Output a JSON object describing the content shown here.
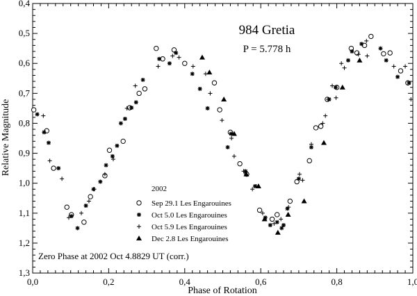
{
  "chart_data": {
    "type": "scatter",
    "title": "984 Gretia",
    "subtitle": "P = 5.778 h",
    "xlabel": "Phase of Rotation",
    "ylabel": "Relative Magnitude",
    "xlim": [
      0.0,
      1.0
    ],
    "ylim": [
      1.3,
      0.4
    ],
    "y_inverted": true,
    "x_ticks": [
      "0,0",
      "0,2",
      "0,4",
      "0,6",
      "0,8",
      "1,0"
    ],
    "y_ticks": [
      "0,4",
      "0,5",
      "0,6",
      "0,7",
      "0,8",
      "0,9",
      "1,0",
      "1,1",
      "1,2",
      "1,3"
    ],
    "grid": false,
    "legend_year": "2002",
    "legend_position": "bottom-center",
    "note": "Zero Phase at 2002 Oct 4.8829 UT (corr.)",
    "series": [
      {
        "name": "Sep 29.1 Les Engarouines",
        "marker": "open-circle",
        "points": [
          [
            0.003,
            0.755
          ],
          [
            0.037,
            0.825
          ],
          [
            0.055,
            0.95
          ],
          [
            0.09,
            1.08
          ],
          [
            0.102,
            1.105
          ],
          [
            0.135,
            1.13
          ],
          [
            0.152,
            1.045
          ],
          [
            0.19,
            0.975
          ],
          [
            0.202,
            0.89
          ],
          [
            0.238,
            0.86
          ],
          [
            0.255,
            0.748
          ],
          [
            0.28,
            0.7
          ],
          [
            0.295,
            0.685
          ],
          [
            0.325,
            0.55
          ],
          [
            0.342,
            0.585
          ],
          [
            0.372,
            0.555
          ],
          [
            0.4,
            0.6
          ],
          [
            0.478,
            0.665
          ],
          [
            0.492,
            0.755
          ],
          [
            0.52,
            0.83
          ],
          [
            0.545,
            0.935
          ],
          [
            0.563,
            0.97
          ],
          [
            0.597,
            1.09
          ],
          [
            0.63,
            1.12
          ],
          [
            0.643,
            1.105
          ],
          [
            0.677,
            1.06
          ],
          [
            0.695,
            0.995
          ],
          [
            0.728,
            0.925
          ],
          [
            0.745,
            0.815
          ],
          [
            0.758,
            0.81
          ],
          [
            0.775,
            0.72
          ],
          [
            0.8,
            0.68
          ],
          [
            0.838,
            0.55
          ],
          [
            0.853,
            0.565
          ],
          [
            0.873,
            0.54
          ],
          [
            0.89,
            0.51
          ],
          [
            0.923,
            0.568
          ],
          [
            0.94,
            0.565
          ],
          [
            0.968,
            0.625
          ],
          [
            0.987,
            0.665
          ]
        ]
      },
      {
        "name": "Oct 5.0 Les Engarouines",
        "marker": "asterisk",
        "points": [
          [
            0.012,
            0.77
          ],
          [
            0.03,
            0.83
          ],
          [
            0.042,
            0.865
          ],
          [
            0.068,
            0.95
          ],
          [
            0.102,
            1.11
          ],
          [
            0.118,
            1.15
          ],
          [
            0.14,
            1.075
          ],
          [
            0.16,
            1.02
          ],
          [
            0.178,
            0.995
          ],
          [
            0.193,
            0.94
          ],
          [
            0.21,
            0.91
          ],
          [
            0.222,
            0.875
          ],
          [
            0.232,
            0.8
          ],
          [
            0.243,
            0.785
          ],
          [
            0.26,
            0.748
          ],
          [
            0.272,
            0.73
          ],
          [
            0.29,
            0.655
          ],
          [
            0.333,
            0.585
          ],
          [
            0.36,
            0.6
          ],
          [
            0.377,
            0.565
          ],
          [
            0.42,
            0.635
          ],
          [
            0.44,
            0.685
          ],
          [
            0.46,
            0.75
          ],
          [
            0.513,
            0.88
          ],
          [
            0.522,
            0.835
          ],
          [
            0.56,
            0.96
          ],
          [
            0.585,
            1.01
          ],
          [
            0.612,
            1.115
          ],
          [
            0.625,
            1.14
          ],
          [
            0.643,
            1.13
          ],
          [
            0.655,
            1.15
          ],
          [
            0.66,
            1.14
          ],
          [
            0.67,
            1.085
          ],
          [
            0.7,
            0.985
          ],
          [
            0.733,
            0.88
          ],
          [
            0.78,
            0.72
          ],
          [
            0.797,
            0.68
          ],
          [
            0.83,
            0.59
          ],
          [
            0.84,
            0.56
          ],
          [
            0.865,
            0.535
          ],
          [
            0.915,
            0.55
          ],
          [
            0.93,
            0.59
          ],
          [
            0.96,
            0.645
          ],
          [
            0.99,
            0.665
          ]
        ]
      },
      {
        "name": "Oct 5.9 Les Engarouines",
        "marker": "plus",
        "points": [
          [
            0.028,
            0.775
          ],
          [
            0.045,
            0.925
          ],
          [
            0.077,
            0.985
          ],
          [
            0.095,
            1.115
          ],
          [
            0.128,
            1.1
          ],
          [
            0.148,
            1.06
          ],
          [
            0.162,
            1.02
          ],
          [
            0.19,
            0.97
          ],
          [
            0.212,
            0.92
          ],
          [
            0.248,
            0.75
          ],
          [
            0.27,
            0.675
          ],
          [
            0.33,
            0.61
          ],
          [
            0.368,
            0.575
          ],
          [
            0.385,
            0.58
          ],
          [
            0.422,
            0.61
          ],
          [
            0.455,
            0.635
          ],
          [
            0.467,
            0.7
          ],
          [
            0.498,
            0.79
          ],
          [
            0.523,
            0.85
          ],
          [
            0.53,
            0.91
          ],
          [
            0.555,
            0.96
          ],
          [
            0.578,
            1.02
          ],
          [
            0.588,
            1.01
          ],
          [
            0.605,
            1.1
          ],
          [
            0.635,
            1.135
          ],
          [
            0.653,
            1.12
          ],
          [
            0.673,
            1.08
          ],
          [
            0.702,
            0.97
          ],
          [
            0.71,
            0.99
          ],
          [
            0.733,
            0.87
          ],
          [
            0.763,
            0.8
          ],
          [
            0.77,
            0.775
          ],
          [
            0.777,
            0.72
          ],
          [
            0.788,
            0.675
          ],
          [
            0.798,
            0.715
          ],
          [
            0.812,
            0.6
          ],
          [
            0.82,
            0.615
          ],
          [
            0.857,
            0.57
          ],
          [
            0.878,
            0.525
          ],
          [
            0.88,
            0.575
          ],
          [
            0.95,
            0.61
          ],
          [
            0.98,
            0.61
          ],
          [
            0.995,
            0.72
          ]
        ]
      },
      {
        "name": "Dec 2.8 Les Engarouines",
        "marker": "filled-triangle",
        "points": [
          [
            0.446,
            0.58
          ],
          [
            0.465,
            0.63
          ],
          [
            0.503,
            0.72
          ],
          [
            0.53,
            0.835
          ],
          [
            0.562,
            0.97
          ],
          [
            0.594,
            1.01
          ],
          [
            0.61,
            1.12
          ],
          [
            0.645,
            1.165
          ],
          [
            0.672,
            1.105
          ],
          [
            0.714,
            1.06
          ],
          [
            0.766,
            0.865
          ],
          [
            0.815,
            0.68
          ],
          [
            0.86,
            0.59
          ]
        ]
      }
    ]
  }
}
